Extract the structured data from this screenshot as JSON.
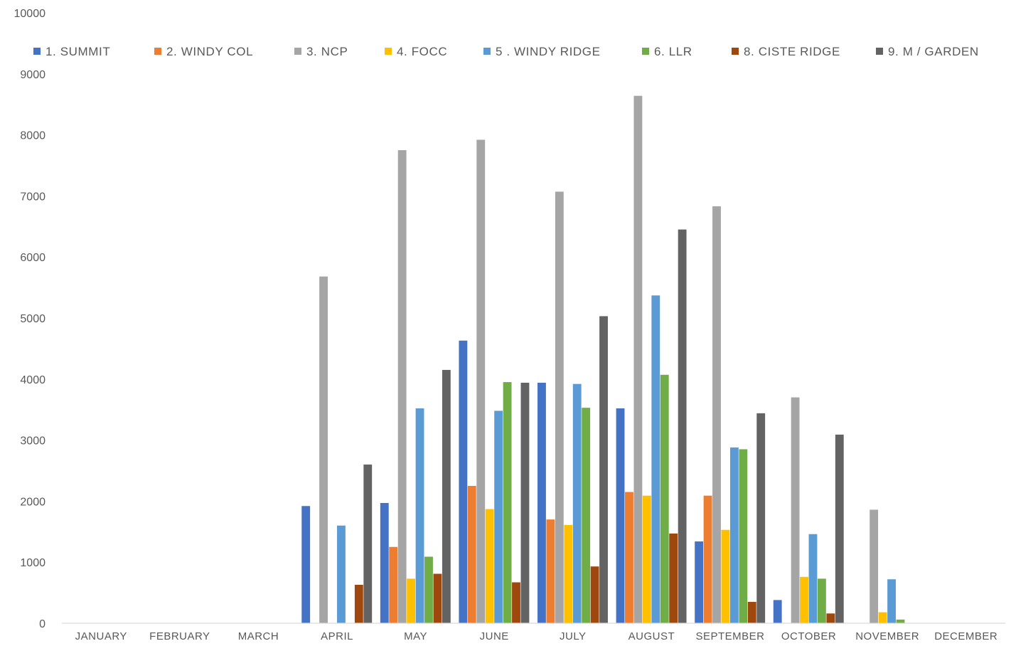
{
  "chart_data": {
    "type": "bar",
    "categories": [
      "JANUARY",
      "FEBRUARY",
      "MARCH",
      "APRIL",
      "MAY",
      "JUNE",
      "JULY",
      "AUGUST",
      "SEPTEMBER",
      "OCTOBER",
      "NOVEMBER",
      "DECEMBER"
    ],
    "series": [
      {
        "name": "1. SUMMIT",
        "color": "#4472C4",
        "values": [
          null,
          null,
          null,
          1920,
          1970,
          4630,
          3940,
          3520,
          1340,
          380,
          null,
          null
        ]
      },
      {
        "name": "2. WINDY COL",
        "color": "#ED7D31",
        "values": [
          null,
          null,
          null,
          null,
          1250,
          2250,
          1700,
          2150,
          2090,
          null,
          null,
          null
        ]
      },
      {
        "name": "3. NCP",
        "color": "#A5A5A5",
        "values": [
          null,
          null,
          null,
          5680,
          7750,
          7920,
          7070,
          8640,
          6830,
          3700,
          1860,
          null
        ]
      },
      {
        "name": "4. FOCC",
        "color": "#FFC000",
        "values": [
          null,
          null,
          null,
          null,
          730,
          1870,
          1610,
          2090,
          1530,
          760,
          180,
          null
        ]
      },
      {
        "name": "5 . WINDY RIDGE",
        "color": "#5B9BD5",
        "values": [
          null,
          null,
          null,
          1600,
          3520,
          3480,
          3920,
          5370,
          2880,
          1460,
          720,
          null
        ]
      },
      {
        "name": "6. LLR",
        "color": "#70AD47",
        "values": [
          null,
          null,
          null,
          null,
          1090,
          3950,
          3530,
          4070,
          2850,
          730,
          60,
          null
        ]
      },
      {
        "name": "8. CISTE RIDGE",
        "color": "#9E480E",
        "values": [
          null,
          null,
          null,
          630,
          810,
          670,
          930,
          1470,
          350,
          160,
          null,
          null
        ]
      },
      {
        "name": "9. M / GARDEN",
        "color": "#636363",
        "values": [
          null,
          null,
          null,
          2600,
          4150,
          3940,
          5030,
          6450,
          3440,
          3090,
          null,
          null
        ]
      }
    ],
    "title": "",
    "xlabel": "",
    "ylabel": "",
    "ylim": [
      0,
      10000
    ],
    "y_ticks": [
      "0",
      "1000",
      "2000",
      "3000",
      "4000",
      "5000",
      "6000",
      "7000",
      "8000",
      "9000",
      "10000"
    ],
    "grid": false,
    "legend_position": "top"
  }
}
